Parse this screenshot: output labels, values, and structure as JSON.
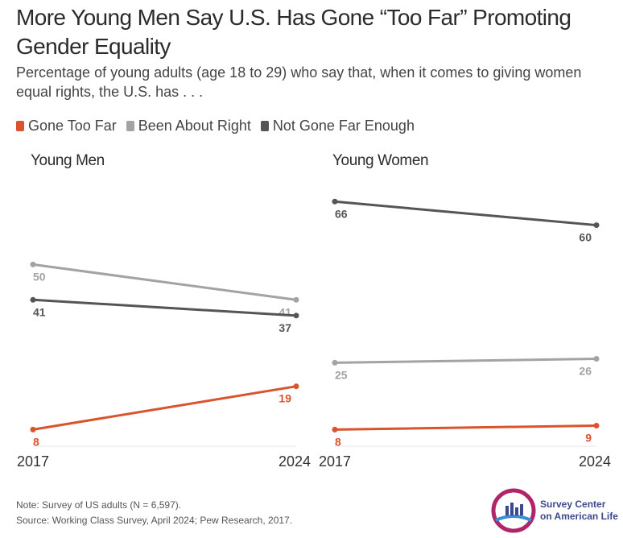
{
  "title": "More Young Men Say U.S. Has Gone “Too Far” Promoting Gender Equality",
  "subtitle": "Percentage of young adults (age 18 to 29) who say that, when it comes to giving women equal rights, the U.S. has . . .",
  "legend": [
    {
      "label": "Gone Too Far",
      "color": "#d9532e"
    },
    {
      "label": "Been About Right",
      "color": "#a3a3a3"
    },
    {
      "label": "Not Gone Far Enough",
      "color": "#555555"
    }
  ],
  "note": "Note: Survey of US adults (N = 6,597).",
  "source": "Source: Working Class Survey, April 2024; Pew Research, 2017.",
  "logo": {
    "line1": "Survey Center",
    "line2": "on American Life",
    "icon": "survey-center-logo-icon"
  },
  "chart_data": [
    {
      "type": "line",
      "title": "Young Men",
      "x": [
        "2017",
        "2024"
      ],
      "ylim": [
        5,
        72
      ],
      "series": [
        {
          "name": "Gone Too Far",
          "values": [
            8,
            19
          ],
          "color": "#d9532e"
        },
        {
          "name": "Been About Right",
          "values": [
            50,
            41
          ],
          "color": "#a3a3a3"
        },
        {
          "name": "Not Gone Far Enough",
          "values": [
            41,
            37
          ],
          "color": "#555555"
        }
      ]
    },
    {
      "type": "line",
      "title": "Young Women",
      "x": [
        "2017",
        "2024"
      ],
      "ylim": [
        5,
        72
      ],
      "series": [
        {
          "name": "Gone Too Far",
          "values": [
            8,
            9
          ],
          "color": "#d9532e"
        },
        {
          "name": "Been About Right",
          "values": [
            25,
            26
          ],
          "color": "#a3a3a3"
        },
        {
          "name": "Not Gone Far Enough",
          "values": [
            66,
            60
          ],
          "color": "#555555"
        }
      ]
    }
  ]
}
